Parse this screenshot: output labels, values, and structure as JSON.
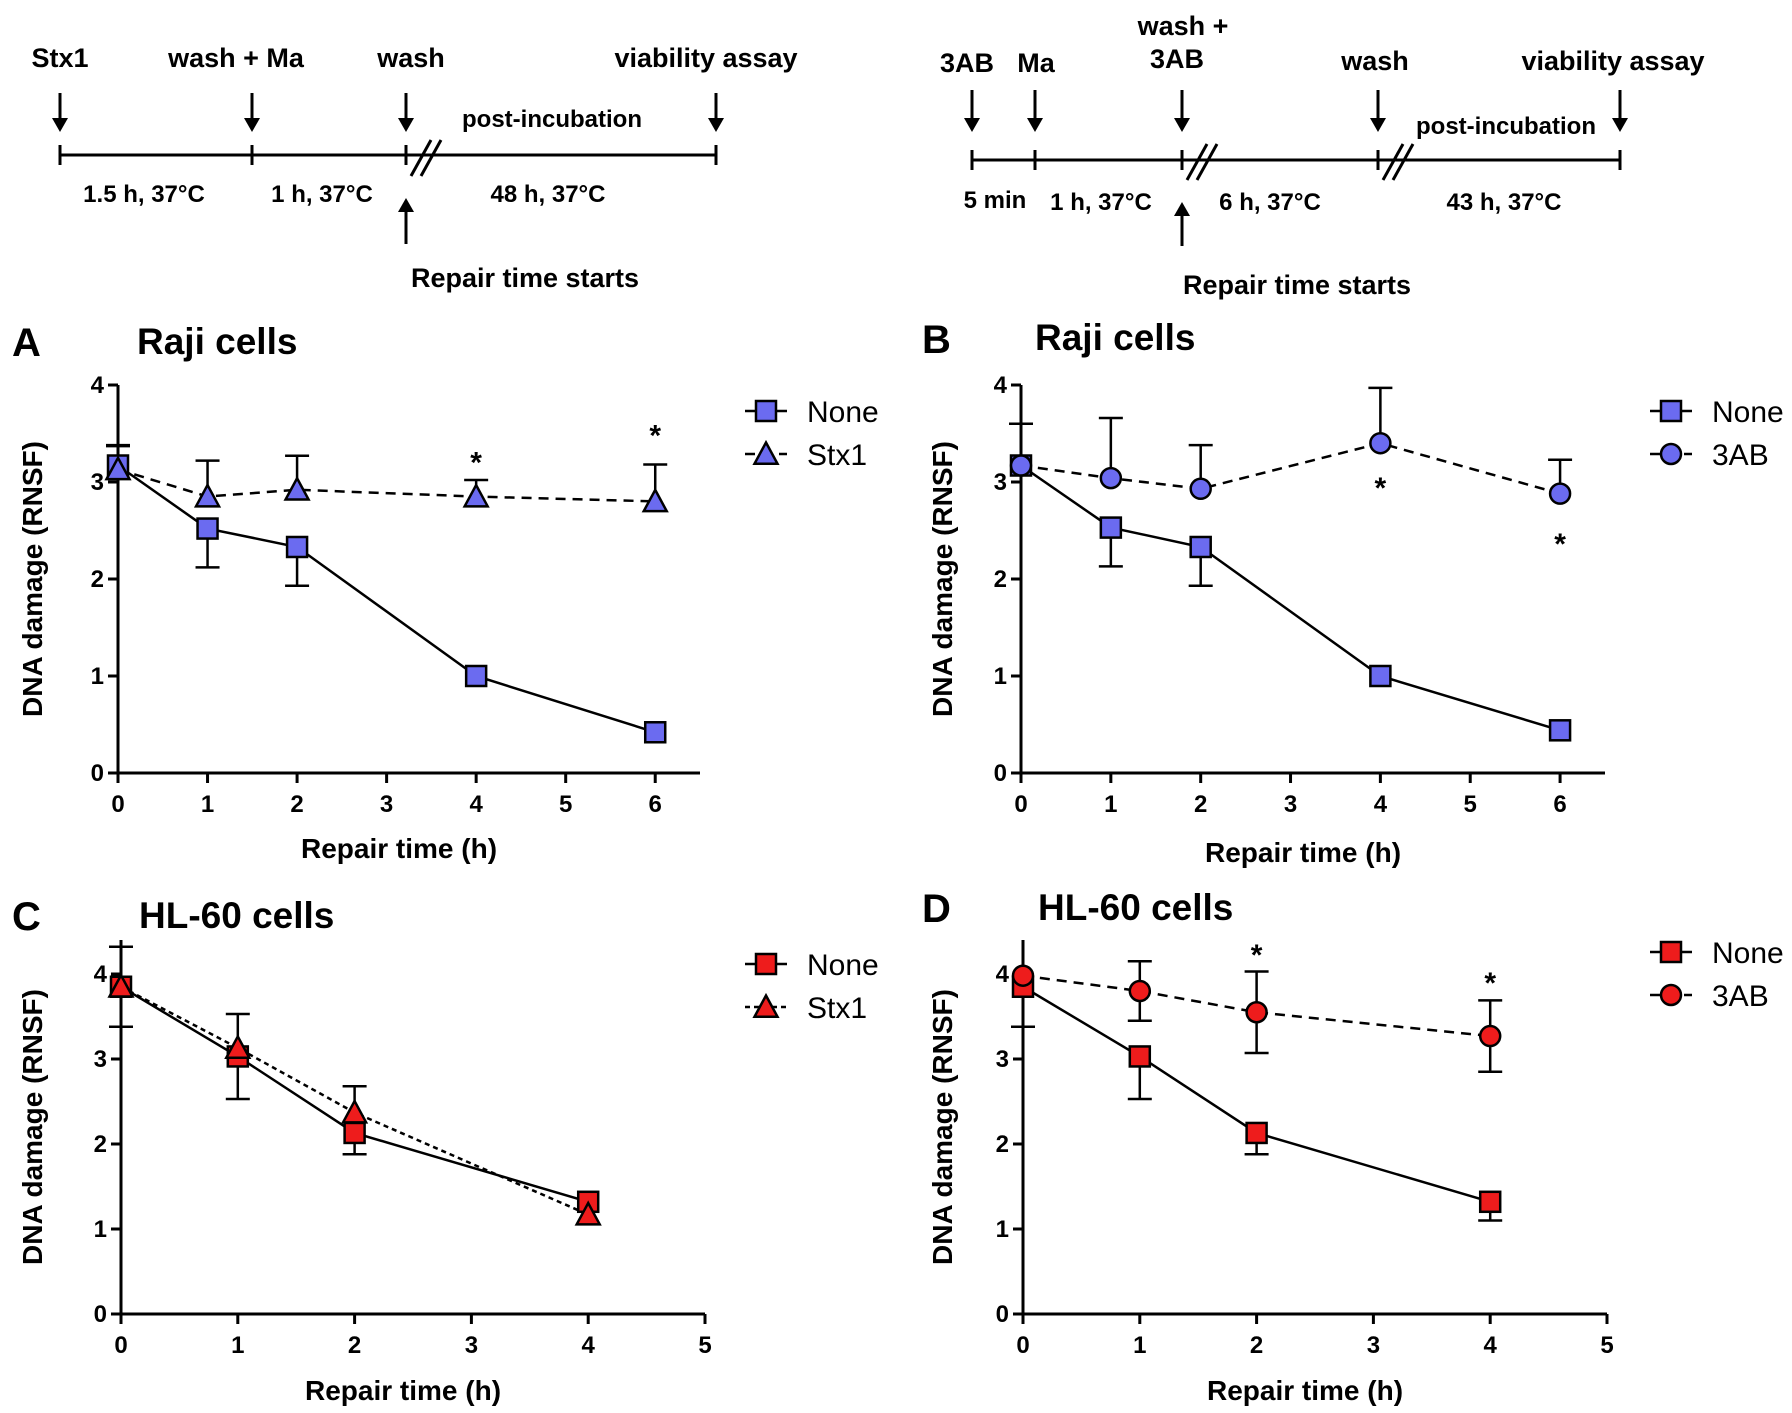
{
  "timeline_left": {
    "labels": {
      "stx1": "Stx1",
      "wash_ma": "wash + Ma",
      "wash": "wash",
      "viability": "viability assay",
      "post_incubation": "post-incubation",
      "repair_starts": "Repair time starts"
    },
    "durations": [
      "1.5 h, 37°C",
      "1 h, 37°C",
      "48 h, 37°C"
    ]
  },
  "timeline_right": {
    "labels": {
      "ab": "3AB",
      "ma": "Ma",
      "wash3ab_line1": "wash +",
      "wash3ab_line2": "3AB",
      "wash": "wash",
      "viability": "viability assay",
      "post_incubation": "post-incubation",
      "repair_starts": "Repair time starts"
    },
    "durations": [
      "5 min",
      "1 h, 37°C",
      "6 h, 37°C",
      "43 h, 37°C"
    ]
  },
  "colors": {
    "blue": "#6b6bf0",
    "red": "#ee1c1c"
  },
  "chart_data": [
    {
      "id": "A",
      "letter": "A",
      "title": "Raji cells",
      "type": "line",
      "xlabel": "Repair time (h)",
      "ylabel": "DNA damage (RNSF)",
      "xlim": [
        0,
        6.5
      ],
      "ylim": [
        0,
        4
      ],
      "xticks": [
        0,
        1,
        2,
        3,
        4,
        5,
        6
      ],
      "yticks": [
        0,
        1,
        2,
        3,
        4
      ],
      "color": "blue",
      "series": [
        {
          "name": "None",
          "marker": "square",
          "dash": "solid",
          "x": [
            0,
            1,
            2,
            4,
            6
          ],
          "y": [
            3.17,
            2.52,
            2.33,
            1.0,
            0.42
          ],
          "err": [
            0.2,
            0.4,
            0.4,
            0,
            0
          ],
          "err_dir": [
            "up",
            "down",
            "down",
            "none",
            "none"
          ]
        },
        {
          "name": "Stx1",
          "marker": "triangle",
          "dash": "dashed",
          "x": [
            0,
            1,
            2,
            4,
            6
          ],
          "y": [
            3.13,
            2.85,
            2.92,
            2.85,
            2.8
          ],
          "err": [
            0.25,
            0.37,
            0.35,
            0.17,
            0.38
          ],
          "err_dir": [
            "up",
            "up",
            "up",
            "up",
            "up"
          ]
        }
      ],
      "stars": [
        {
          "x": 4,
          "y": 3.22,
          "text": "*"
        },
        {
          "x": 6,
          "y": 3.5,
          "text": "*"
        }
      ]
    },
    {
      "id": "B",
      "letter": "B",
      "title": "Raji cells",
      "type": "line",
      "xlabel": "Repair time (h)",
      "ylabel": "DNA damage (RNSF)",
      "xlim": [
        0,
        6.5
      ],
      "ylim": [
        0,
        4
      ],
      "xticks": [
        0,
        1,
        2,
        3,
        4,
        5,
        6
      ],
      "yticks": [
        0,
        1,
        2,
        3,
        4
      ],
      "color": "blue",
      "series": [
        {
          "name": "None",
          "marker": "square",
          "dash": "solid",
          "x": [
            0,
            1,
            2,
            4,
            6
          ],
          "y": [
            3.17,
            2.53,
            2.33,
            1.0,
            0.44
          ],
          "err": [
            0,
            0.4,
            0.4,
            0,
            0
          ],
          "err_dir": [
            "none",
            "down",
            "down",
            "none",
            "none"
          ]
        },
        {
          "name": "3AB",
          "marker": "circle",
          "dash": "dashed",
          "x": [
            0,
            1,
            2,
            4,
            6
          ],
          "y": [
            3.17,
            3.04,
            2.93,
            3.4,
            2.88
          ],
          "err": [
            0.43,
            0.62,
            0.45,
            0.57,
            0.35
          ],
          "err_dir": [
            "up",
            "up",
            "up",
            "up",
            "up"
          ]
        }
      ],
      "stars": [
        {
          "x": 4,
          "y": 2.96,
          "text": "*"
        },
        {
          "x": 6,
          "y": 2.38,
          "text": "*"
        }
      ]
    },
    {
      "id": "C",
      "letter": "C",
      "title": "HL-60 cells",
      "type": "line",
      "xlabel": "Repair time (h)",
      "ylabel": "DNA damage (RNSF)",
      "xlim": [
        0,
        5
      ],
      "ylim": [
        0,
        4.4
      ],
      "xticks": [
        0,
        1,
        2,
        3,
        4,
        5
      ],
      "yticks": [
        0,
        1,
        2,
        3,
        4
      ],
      "color": "red",
      "series": [
        {
          "name": "None",
          "marker": "square",
          "dash": "solid",
          "x": [
            0,
            1,
            2,
            4
          ],
          "y": [
            3.85,
            3.03,
            2.13,
            1.32
          ],
          "err": [
            0.47,
            0.5,
            0.25,
            0
          ],
          "err_dir": [
            "both",
            "down",
            "down",
            "none"
          ]
        },
        {
          "name": "Stx1",
          "marker": "triangle",
          "dash": "dotted",
          "x": [
            0,
            1,
            2,
            4
          ],
          "y": [
            3.85,
            3.13,
            2.37,
            1.17
          ],
          "err": [
            0.47,
            0.4,
            0.31,
            0
          ],
          "err_dir": [
            "both",
            "up",
            "up",
            "none"
          ]
        }
      ],
      "stars": []
    },
    {
      "id": "D",
      "letter": "D",
      "title": "HL-60 cells",
      "type": "line",
      "xlabel": "Repair time (h)",
      "ylabel": "DNA damage (RNSF)",
      "xlim": [
        0,
        5
      ],
      "ylim": [
        0,
        4.4
      ],
      "xticks": [
        0,
        1,
        2,
        3,
        4,
        5
      ],
      "yticks": [
        0,
        1,
        2,
        3,
        4
      ],
      "color": "red",
      "series": [
        {
          "name": "None",
          "marker": "square",
          "dash": "solid",
          "x": [
            0,
            1,
            2,
            4
          ],
          "y": [
            3.85,
            3.03,
            2.13,
            1.32
          ],
          "err": [
            0.47,
            0.5,
            0.25,
            0.22
          ],
          "err_dir": [
            "down",
            "down",
            "down",
            "down"
          ]
        },
        {
          "name": "3AB",
          "marker": "circle",
          "dash": "dashed",
          "x": [
            0,
            1,
            2,
            4
          ],
          "y": [
            3.98,
            3.8,
            3.55,
            3.27
          ],
          "err": [
            0,
            0.35,
            0.48,
            0.42
          ],
          "err_dir": [
            "none",
            "both",
            "both",
            "both"
          ]
        }
      ],
      "stars": [
        {
          "x": 2,
          "y": 4.25,
          "text": "*"
        },
        {
          "x": 4,
          "y": 3.92,
          "text": "*"
        }
      ]
    }
  ]
}
